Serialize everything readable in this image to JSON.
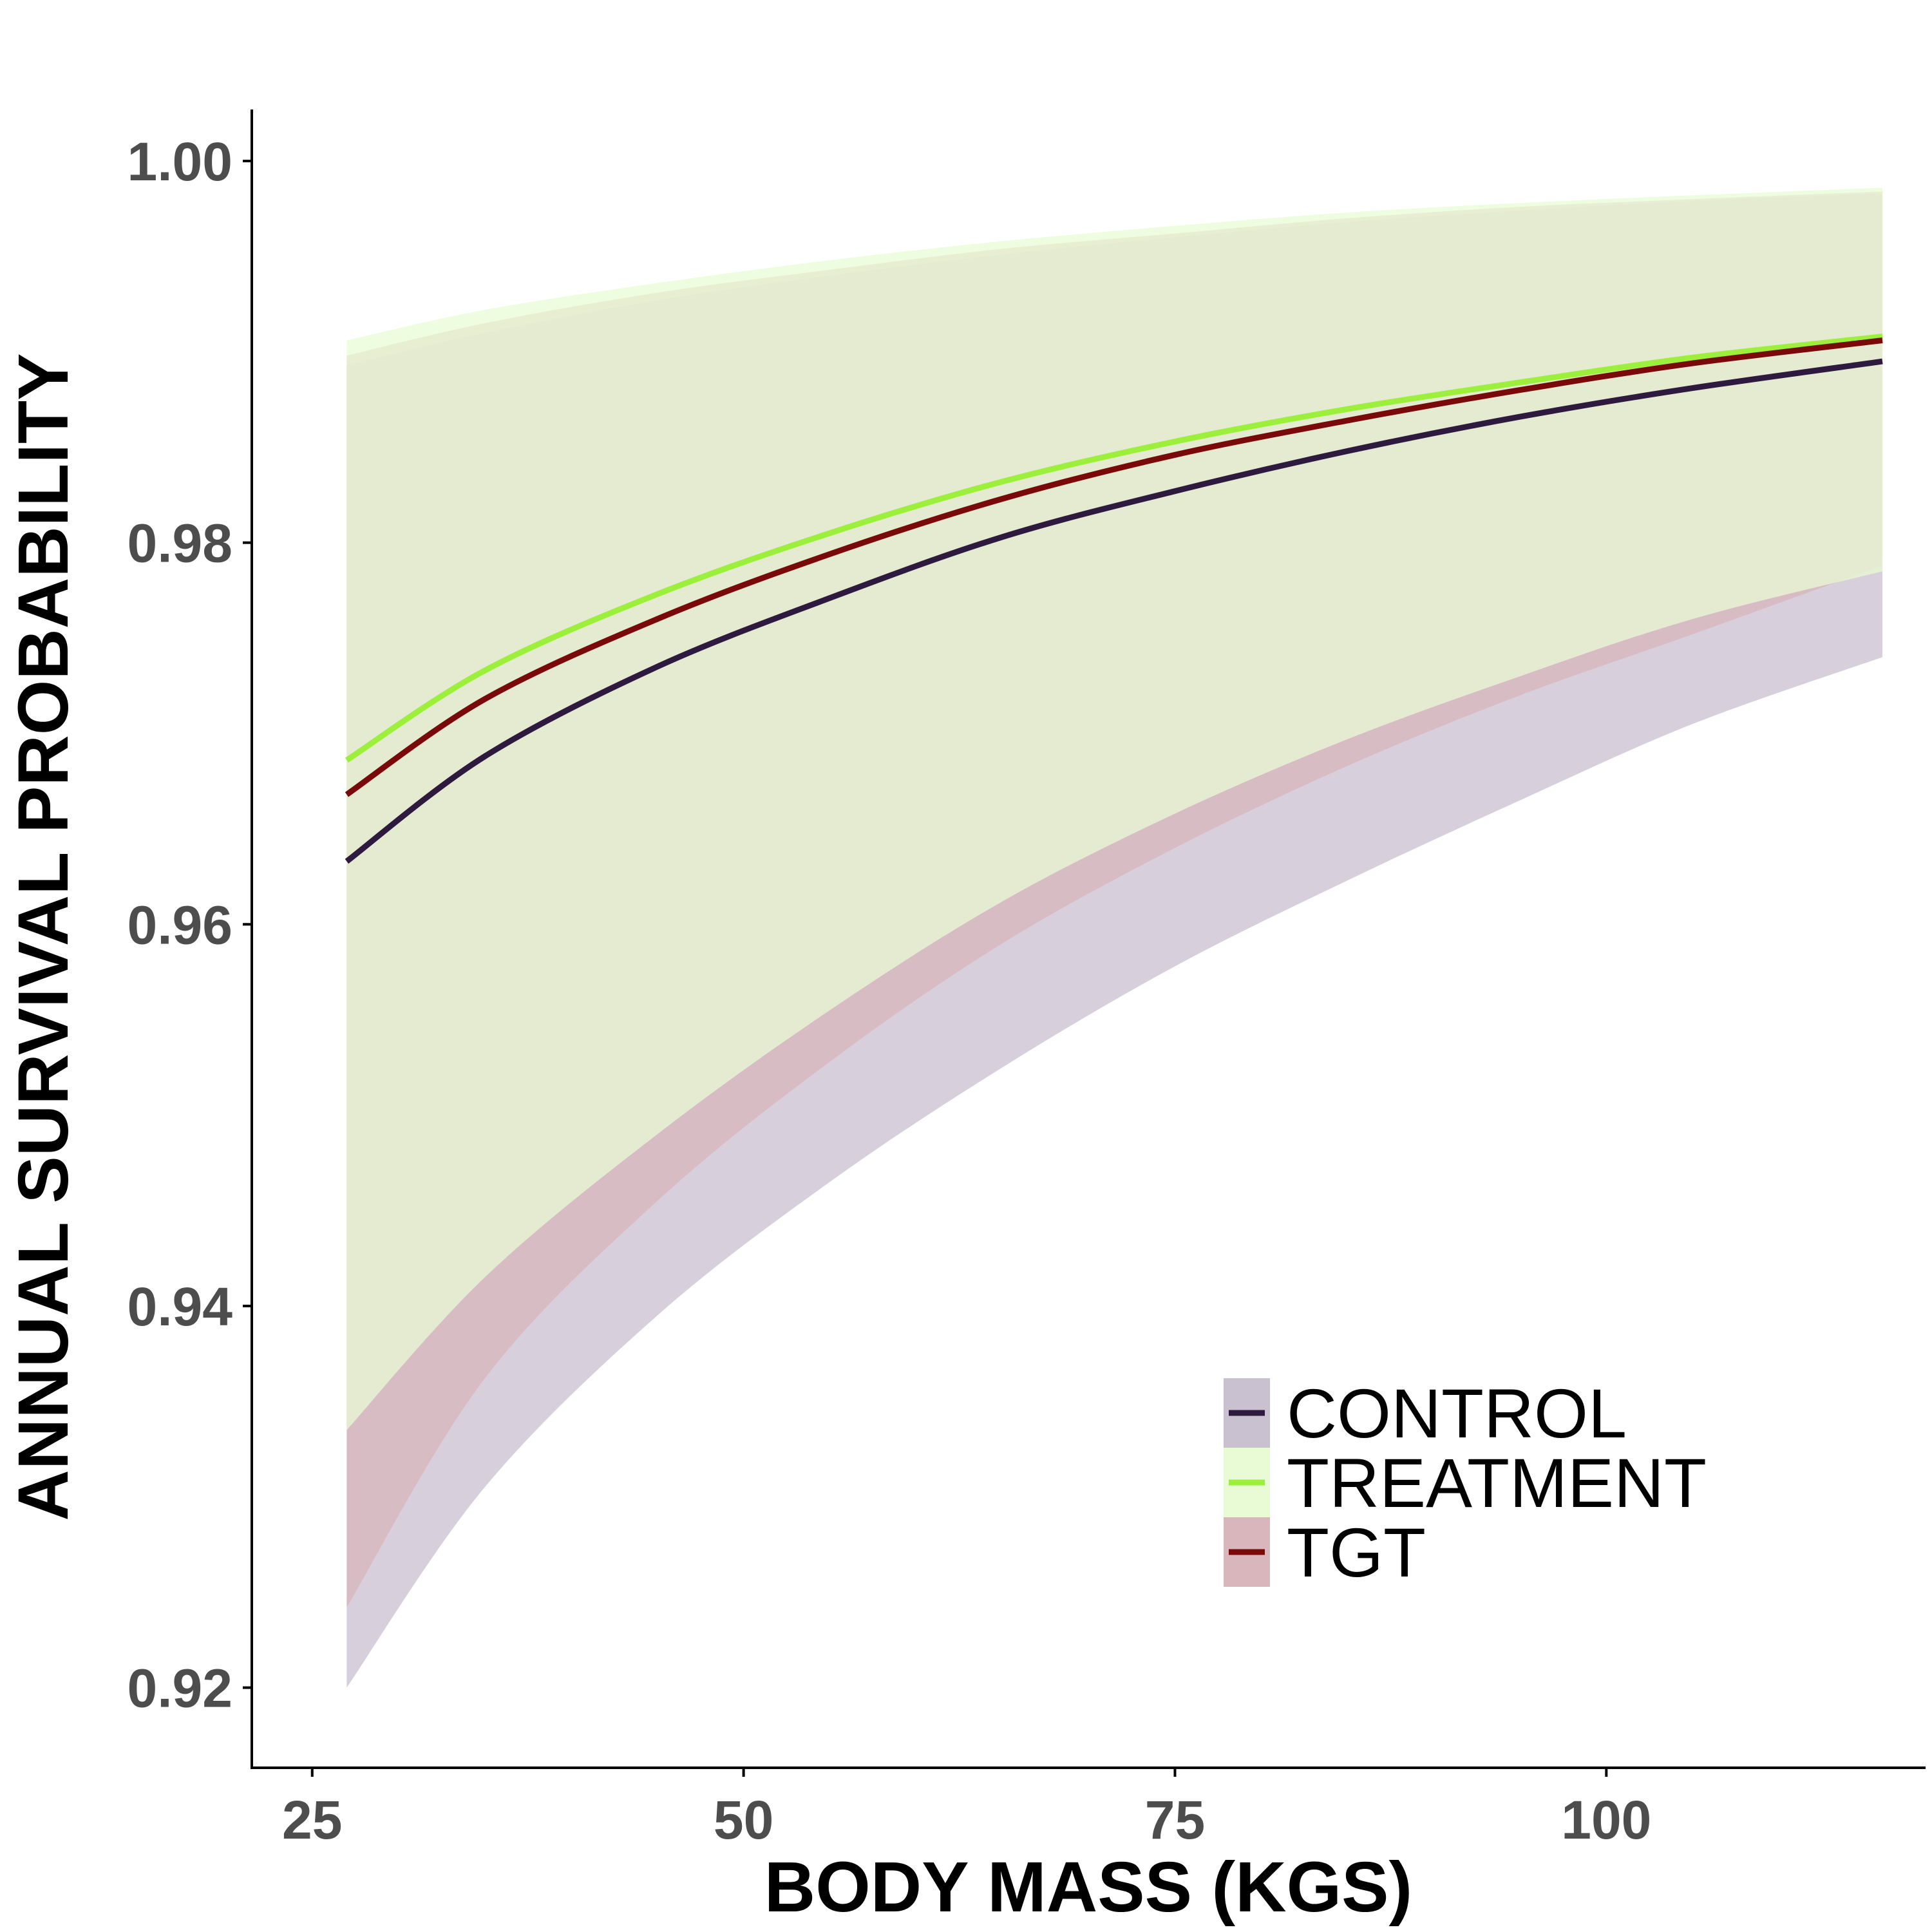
{
  "chart_data": {
    "type": "line",
    "title": "",
    "xlabel": "BODY MASS (KGS)",
    "ylabel": "ANNUAL SURVIVAL PROBABILITY",
    "xlim": [
      21.5,
      118.5
    ],
    "ylim": [
      0.9158,
      1.0027
    ],
    "x_ticks": [
      25,
      50,
      75,
      100
    ],
    "x_tick_labels": [
      "25",
      "50",
      "75",
      "100"
    ],
    "y_ticks": [
      0.92,
      0.94,
      0.96,
      0.98,
      1.0
    ],
    "y_tick_labels": [
      "0.92",
      "0.94",
      "0.96",
      "0.98",
      "1.00"
    ],
    "grid": false,
    "legend_position": "bottom-right",
    "x": [
      27,
      35,
      45,
      55,
      65,
      75,
      85,
      95,
      105,
      116
    ],
    "series": [
      {
        "name": "CONTROL",
        "color": "#2d1a3e",
        "band_color": "#c9c0d0",
        "values": [
          0.9633,
          0.9688,
          0.9735,
          0.9771,
          0.9803,
          0.9827,
          0.9848,
          0.9866,
          0.9881,
          0.9895
        ],
        "lower": [
          0.92,
          0.9305,
          0.9395,
          0.9465,
          0.9525,
          0.9578,
          0.9623,
          0.9665,
          0.9705,
          0.974
        ],
        "upper": [
          0.9893,
          0.991,
          0.9927,
          0.994,
          0.9951,
          0.996,
          0.9968,
          0.9974,
          0.9979,
          0.9983
        ]
      },
      {
        "name": "TREATMENT",
        "color": "#9cf03c",
        "band_color": "#e8fbd4",
        "values": [
          0.9686,
          0.9733,
          0.9773,
          0.9805,
          0.9832,
          0.9853,
          0.987,
          0.9884,
          0.9897,
          0.9908
        ],
        "lower": [
          0.9335,
          0.9415,
          0.949,
          0.9555,
          0.9612,
          0.9658,
          0.9697,
          0.973,
          0.976,
          0.9785
        ],
        "upper": [
          0.9906,
          0.9922,
          0.9936,
          0.9948,
          0.9958,
          0.9966,
          0.9973,
          0.9978,
          0.9982,
          0.9986
        ]
      },
      {
        "name": "TGT",
        "color": "#7a0a0a",
        "band_color": "#d8b6bb",
        "values": [
          0.9668,
          0.9718,
          0.976,
          0.9794,
          0.9823,
          0.9846,
          0.9864,
          0.988,
          0.9894,
          0.9906
        ],
        "lower": [
          0.9242,
          0.9362,
          0.9455,
          0.9528,
          0.959,
          0.964,
          0.9683,
          0.972,
          0.9752,
          0.9788
        ],
        "upper": [
          0.9898,
          0.9915,
          0.9931,
          0.9943,
          0.9954,
          0.9962,
          0.997,
          0.9976,
          0.998,
          0.9984
        ]
      }
    ]
  }
}
